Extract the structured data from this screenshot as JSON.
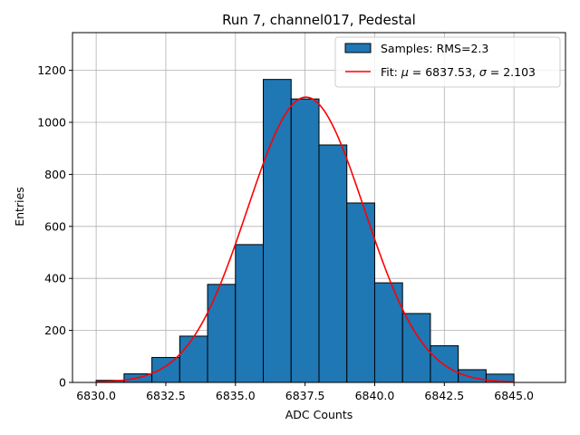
{
  "chart_data": {
    "type": "bar",
    "title": "Run 7, channel017, Pedestal",
    "xlabel": "ADC Counts",
    "ylabel": "Entries",
    "xlim": [
      6829.15,
      6846.85
    ],
    "ylim": [
      0,
      1345
    ],
    "xticks": [
      6830.0,
      6832.5,
      6835.0,
      6837.5,
      6840.0,
      6842.5,
      6845.0
    ],
    "xtick_labels": [
      "6830.0",
      "6832.5",
      "6835.0",
      "6837.5",
      "6840.0",
      "6842.5",
      "6845.0"
    ],
    "yticks": [
      0,
      200,
      400,
      600,
      800,
      1000,
      1200
    ],
    "ytick_labels": [
      "0",
      "200",
      "400",
      "600",
      "800",
      "1000",
      "1200"
    ],
    "grid": true,
    "legend_position": "top-right",
    "bar_color": "#1f77b4",
    "fit_color": "#ff0000",
    "bins": [
      {
        "lo": 6830,
        "hi": 6831,
        "count": 8
      },
      {
        "lo": 6831,
        "hi": 6832,
        "count": 33
      },
      {
        "lo": 6832,
        "hi": 6833,
        "count": 96
      },
      {
        "lo": 6833,
        "hi": 6834,
        "count": 178
      },
      {
        "lo": 6834,
        "hi": 6835,
        "count": 377
      },
      {
        "lo": 6835,
        "hi": 6836,
        "count": 530
      },
      {
        "lo": 6836,
        "hi": 6837,
        "count": 1165
      },
      {
        "lo": 6837,
        "hi": 6838,
        "count": 1090
      },
      {
        "lo": 6838,
        "hi": 6839,
        "count": 913
      },
      {
        "lo": 6839,
        "hi": 6840,
        "count": 690
      },
      {
        "lo": 6840,
        "hi": 6841,
        "count": 383
      },
      {
        "lo": 6841,
        "hi": 6842,
        "count": 265
      },
      {
        "lo": 6842,
        "hi": 6843,
        "count": 141
      },
      {
        "lo": 6843,
        "hi": 6844,
        "count": 49
      },
      {
        "lo": 6844,
        "hi": 6845,
        "count": 32
      }
    ],
    "fit": {
      "mu": 6837.53,
      "sigma": 2.103,
      "amplitude": 1097,
      "x_range": [
        6830,
        6845
      ]
    },
    "legend": [
      {
        "label": "Samples: RMS=2.3",
        "kind": "patch"
      },
      {
        "label_prefix": "Fit: ",
        "mu_symbol": "μ",
        "mu_text": " = 6837.53, ",
        "sigma_symbol": "σ",
        "sigma_text": " = 2.103",
        "kind": "line"
      }
    ]
  }
}
